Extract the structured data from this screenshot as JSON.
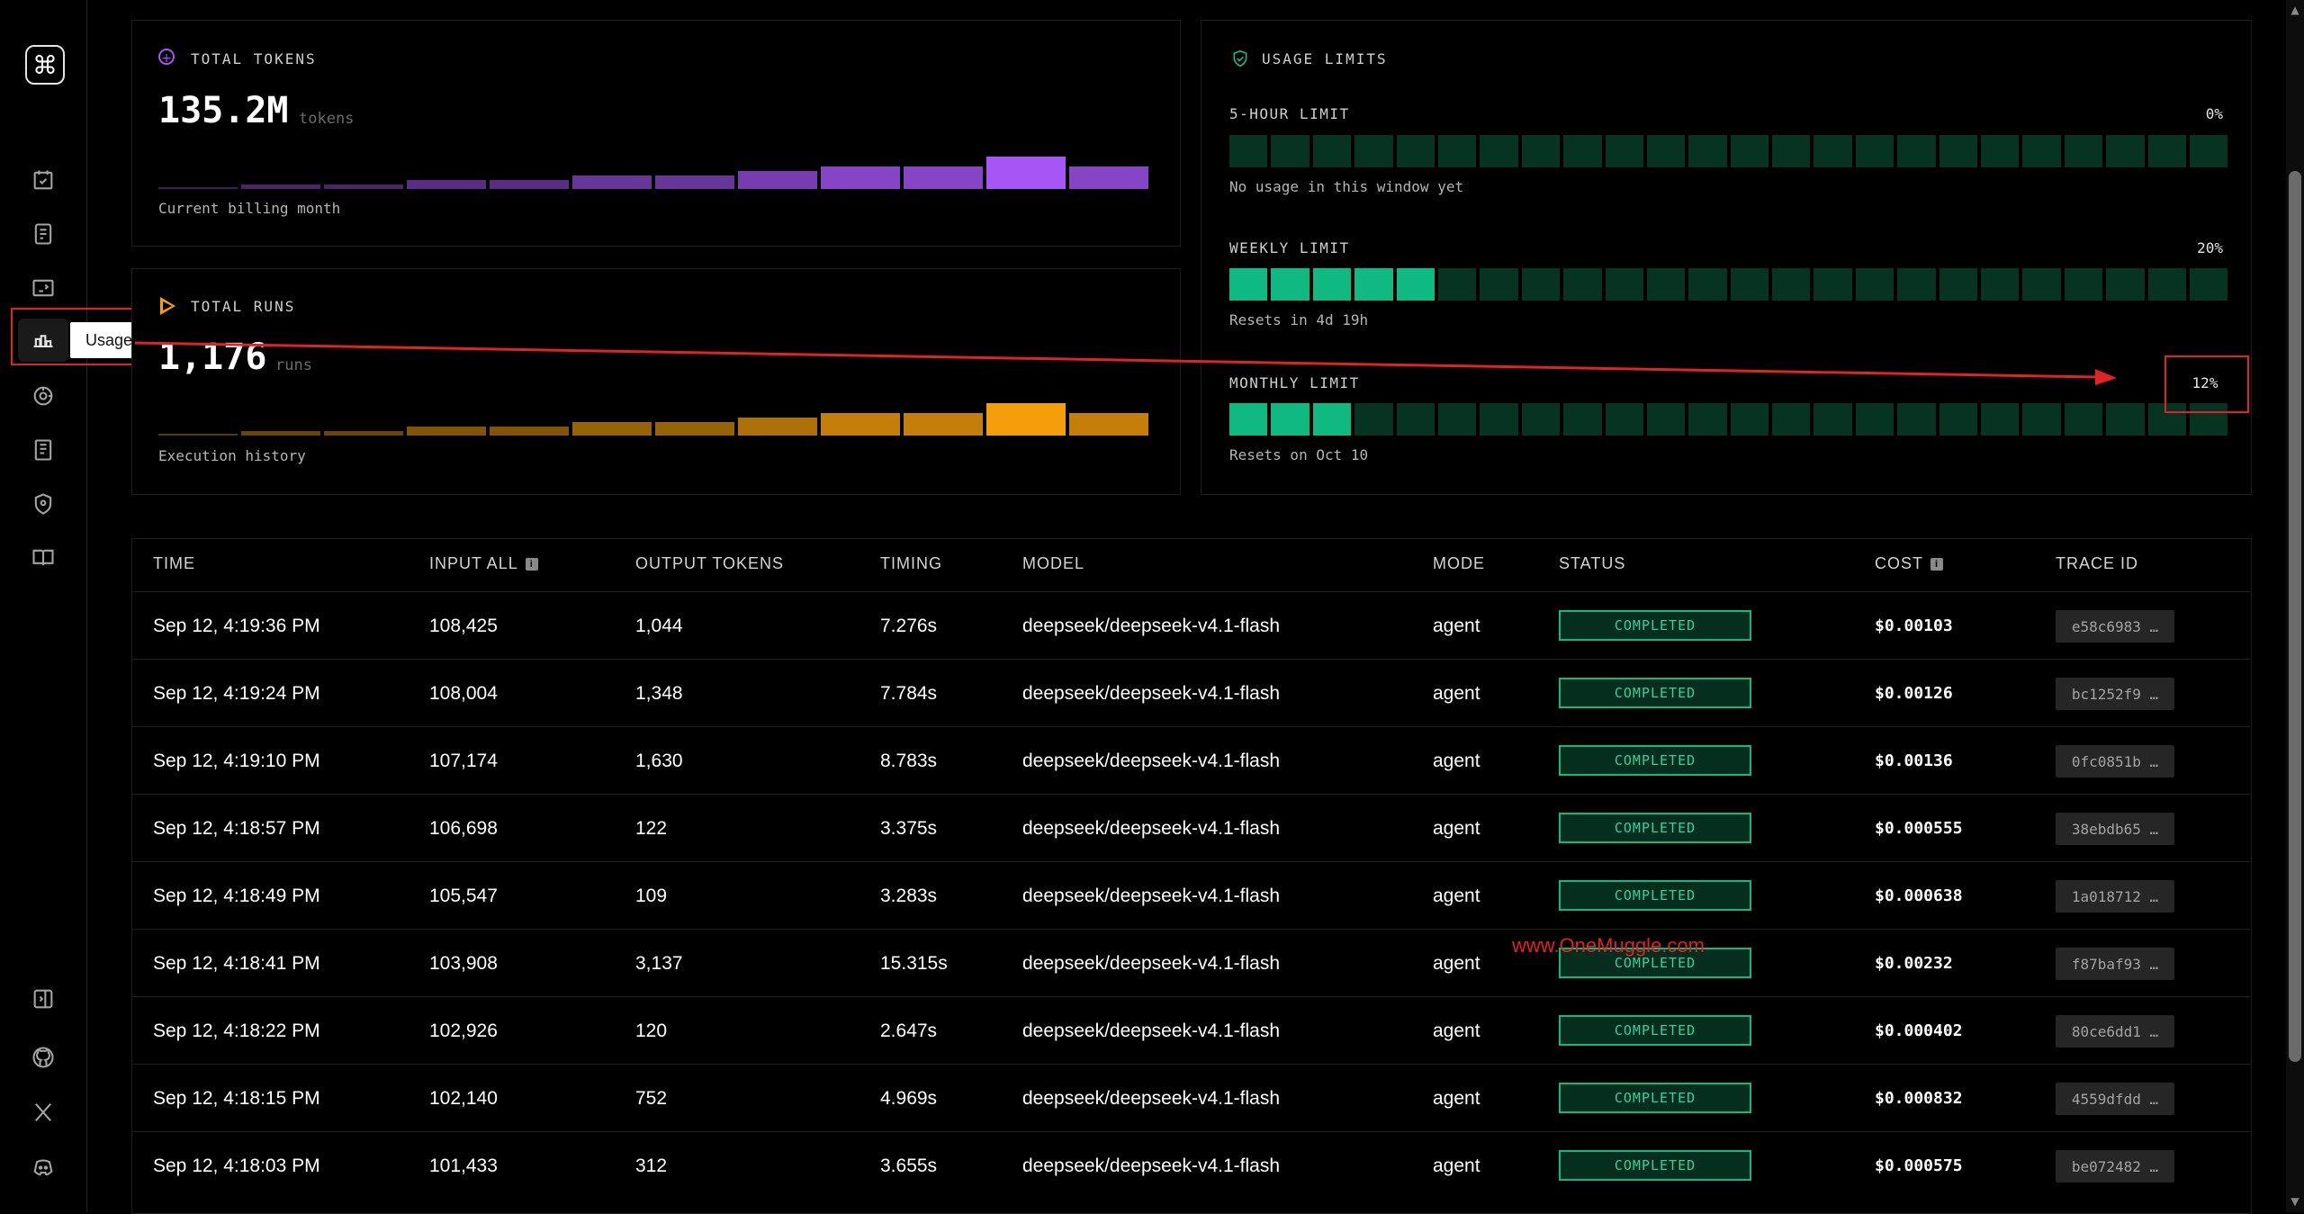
{
  "sidebar": {
    "tooltip": "Usage"
  },
  "tokens": {
    "label": "TOTAL TOKENS",
    "value": "135.2M",
    "unit": "tokens",
    "caption": "Current billing month",
    "bar_color": "#a855f7",
    "bars": [
      0.03,
      0.14,
      0.14,
      0.28,
      0.28,
      0.42,
      0.42,
      0.55,
      0.7,
      0.7,
      1.0,
      0.7
    ]
  },
  "runs": {
    "label": "TOTAL RUNS",
    "value": "1,176",
    "unit": "runs",
    "caption": "Execution history",
    "bar_color": "#f59e0b",
    "bars": [
      0.03,
      0.14,
      0.14,
      0.28,
      0.28,
      0.42,
      0.42,
      0.55,
      0.7,
      0.7,
      1.0,
      0.7
    ]
  },
  "limits": {
    "label": "USAGE LIMITS",
    "five_hour": {
      "label": "5-HOUR LIMIT",
      "pct": "0%",
      "filled": 0,
      "caption": "No usage in this window yet"
    },
    "weekly": {
      "label": "WEEKLY LIMIT",
      "pct": "20%",
      "filled": 5,
      "caption": "Resets in 4d 19h"
    },
    "monthly": {
      "label": "MONTHLY LIMIT",
      "pct": "12%",
      "filled": 3,
      "caption": "Resets on Oct 10"
    },
    "segments": 24,
    "on_color": "#10b981",
    "off_color": "#063322"
  },
  "table": {
    "headers": {
      "time": "TIME",
      "input": "INPUT ALL",
      "output": "OUTPUT TOKENS",
      "timing": "TIMING",
      "model": "MODEL",
      "mode": "MODE",
      "status": "STATUS",
      "cost": "COST",
      "trace": "TRACE ID"
    },
    "rows": [
      {
        "time": "Sep 12, 4:19:36 PM",
        "input": "108,425",
        "output": "1,044",
        "timing": "7.276s",
        "model": "deepseek/deepseek-v4.1-flash",
        "mode": "agent",
        "status": "COMPLETED",
        "cost": "$0.00103",
        "trace": "e58c6983 …"
      },
      {
        "time": "Sep 12, 4:19:24 PM",
        "input": "108,004",
        "output": "1,348",
        "timing": "7.784s",
        "model": "deepseek/deepseek-v4.1-flash",
        "mode": "agent",
        "status": "COMPLETED",
        "cost": "$0.00126",
        "trace": "bc1252f9 …"
      },
      {
        "time": "Sep 12, 4:19:10 PM",
        "input": "107,174",
        "output": "1,630",
        "timing": "8.783s",
        "model": "deepseek/deepseek-v4.1-flash",
        "mode": "agent",
        "status": "COMPLETED",
        "cost": "$0.00136",
        "trace": "0fc0851b …"
      },
      {
        "time": "Sep 12, 4:18:57 PM",
        "input": "106,698",
        "output": "122",
        "timing": "3.375s",
        "model": "deepseek/deepseek-v4.1-flash",
        "mode": "agent",
        "status": "COMPLETED",
        "cost": "$0.000555",
        "trace": "38ebdb65 …"
      },
      {
        "time": "Sep 12, 4:18:49 PM",
        "input": "105,547",
        "output": "109",
        "timing": "3.283s",
        "model": "deepseek/deepseek-v4.1-flash",
        "mode": "agent",
        "status": "COMPLETED",
        "cost": "$0.000638",
        "trace": "1a018712 …"
      },
      {
        "time": "Sep 12, 4:18:41 PM",
        "input": "103,908",
        "output": "3,137",
        "timing": "15.315s",
        "model": "deepseek/deepseek-v4.1-flash",
        "mode": "agent",
        "status": "COMPLETED",
        "cost": "$0.00232",
        "trace": "f87baf93 …"
      },
      {
        "time": "Sep 12, 4:18:22 PM",
        "input": "102,926",
        "output": "120",
        "timing": "2.647s",
        "model": "deepseek/deepseek-v4.1-flash",
        "mode": "agent",
        "status": "COMPLETED",
        "cost": "$0.000402",
        "trace": "80ce6dd1 …"
      },
      {
        "time": "Sep 12, 4:18:15 PM",
        "input": "102,140",
        "output": "752",
        "timing": "4.969s",
        "model": "deepseek/deepseek-v4.1-flash",
        "mode": "agent",
        "status": "COMPLETED",
        "cost": "$0.000832",
        "trace": "4559dfdd …"
      },
      {
        "time": "Sep 12, 4:18:03 PM",
        "input": "101,433",
        "output": "312",
        "timing": "3.655s",
        "model": "deepseek/deepseek-v4.1-flash",
        "mode": "agent",
        "status": "COMPLETED",
        "cost": "$0.000575",
        "trace": "be072482 …"
      }
    ]
  },
  "annotation": {
    "highlighted_value": "12%",
    "color": "#e02424"
  },
  "watermark": "www.OneMuggle.com"
}
